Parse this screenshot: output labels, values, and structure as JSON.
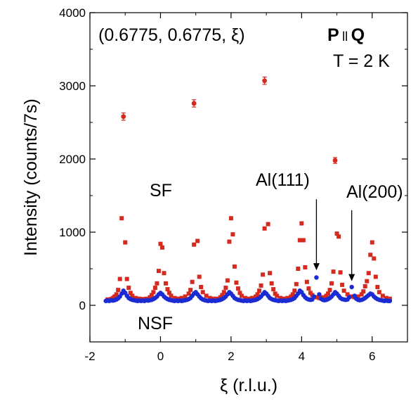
{
  "chart_data": {
    "type": "scatter",
    "xlabel": "ξ (r.l.u.)",
    "ylabel": "Intensity (counts/7s)",
    "xlim": [
      -2,
      7
    ],
    "ylim": [
      -500,
      4000
    ],
    "xticks": [
      -2,
      0,
      2,
      4,
      6
    ],
    "yticks": [
      0,
      1000,
      2000,
      3000,
      4000
    ],
    "xtick_labels": [
      "-2",
      "0",
      "2",
      "4",
      "6"
    ],
    "ytick_labels": [
      "0",
      "1000",
      "2000",
      "3000",
      "4000"
    ],
    "grid": false,
    "colors": {
      "sf": "#d42a1f",
      "nsf": "#1a2bd4"
    },
    "annotations": {
      "title_left": "(0.6775, 0.6775, ξ)",
      "p_label": "P",
      "parallel_label": "ll",
      "q_label": "Q",
      "temperature": "T = 2 K",
      "sf_label": "SF",
      "nsf_label": "NSF",
      "al111": "Al(111)",
      "al200": "Al(200)"
    },
    "al111_arrow": {
      "x": 4.42,
      "y_start": 1450,
      "y_end": 480
    },
    "al200_arrow": {
      "x": 5.42,
      "y_start": 1300,
      "y_end": 330
    },
    "series": [
      {
        "name": "SF",
        "color": "#d42a1f",
        "error_points": [
          {
            "x": -1.05,
            "y": 2580,
            "err": 50
          },
          {
            "x": 0.95,
            "y": 2760,
            "err": 50
          },
          {
            "x": 2.95,
            "y": 3070,
            "err": 50
          },
          {
            "x": 4.95,
            "y": 1980,
            "err": 40
          }
        ],
        "points": [
          [
            -1.5,
            80
          ],
          [
            -1.4,
            85
          ],
          [
            -1.35,
            100
          ],
          [
            -1.3,
            120
          ],
          [
            -1.25,
            150
          ],
          [
            -1.2,
            210
          ],
          [
            -1.15,
            360
          ],
          [
            -1.1,
            1190
          ],
          [
            -1.0,
            860
          ],
          [
            -0.95,
            360
          ],
          [
            -0.9,
            240
          ],
          [
            -0.85,
            170
          ],
          [
            -0.8,
            130
          ],
          [
            -0.7,
            100
          ],
          [
            -0.6,
            90
          ],
          [
            -0.5,
            85
          ],
          [
            -0.4,
            90
          ],
          [
            -0.3,
            110
          ],
          [
            -0.25,
            140
          ],
          [
            -0.2,
            180
          ],
          [
            -0.15,
            240
          ],
          [
            -0.1,
            300
          ],
          [
            -0.05,
            470
          ],
          [
            0.0,
            840
          ],
          [
            0.05,
            790
          ],
          [
            0.1,
            440
          ],
          [
            0.15,
            300
          ],
          [
            0.2,
            220
          ],
          [
            0.25,
            170
          ],
          [
            0.3,
            130
          ],
          [
            0.4,
            100
          ],
          [
            0.5,
            90
          ],
          [
            0.6,
            100
          ],
          [
            0.7,
            120
          ],
          [
            0.8,
            160
          ],
          [
            0.85,
            210
          ],
          [
            0.9,
            320
          ],
          [
            0.95,
            830
          ],
          [
            1.05,
            880
          ],
          [
            1.1,
            390
          ],
          [
            1.15,
            250
          ],
          [
            1.2,
            180
          ],
          [
            1.3,
            130
          ],
          [
            1.4,
            100
          ],
          [
            1.5,
            90
          ],
          [
            1.6,
            90
          ],
          [
            1.7,
            110
          ],
          [
            1.75,
            140
          ],
          [
            1.8,
            180
          ],
          [
            1.85,
            240
          ],
          [
            1.9,
            340
          ],
          [
            1.95,
            870
          ],
          [
            2.0,
            1190
          ],
          [
            2.05,
            970
          ],
          [
            2.1,
            530
          ],
          [
            2.15,
            310
          ],
          [
            2.2,
            230
          ],
          [
            2.25,
            170
          ],
          [
            2.3,
            130
          ],
          [
            2.4,
            100
          ],
          [
            2.5,
            90
          ],
          [
            2.6,
            100
          ],
          [
            2.7,
            120
          ],
          [
            2.75,
            150
          ],
          [
            2.8,
            200
          ],
          [
            2.85,
            270
          ],
          [
            2.9,
            420
          ],
          [
            2.95,
            1050
          ],
          [
            3.05,
            1110
          ],
          [
            3.1,
            440
          ],
          [
            3.15,
            300
          ],
          [
            3.2,
            220
          ],
          [
            3.25,
            160
          ],
          [
            3.3,
            130
          ],
          [
            3.4,
            100
          ],
          [
            3.5,
            90
          ],
          [
            3.6,
            100
          ],
          [
            3.7,
            120
          ],
          [
            3.75,
            150
          ],
          [
            3.8,
            200
          ],
          [
            3.85,
            290
          ],
          [
            3.9,
            500
          ],
          [
            3.95,
            890
          ],
          [
            4.0,
            1120
          ],
          [
            4.05,
            890
          ],
          [
            4.1,
            520
          ],
          [
            4.15,
            320
          ],
          [
            4.2,
            230
          ],
          [
            4.25,
            170
          ],
          [
            4.3,
            140
          ],
          [
            4.4,
            110
          ],
          [
            4.5,
            100
          ],
          [
            4.6,
            110
          ],
          [
            4.7,
            130
          ],
          [
            4.75,
            160
          ],
          [
            4.8,
            210
          ],
          [
            4.85,
            300
          ],
          [
            4.9,
            460
          ],
          [
            5.0,
            980
          ],
          [
            5.05,
            940
          ],
          [
            5.1,
            450
          ],
          [
            5.15,
            280
          ],
          [
            5.2,
            200
          ],
          [
            5.3,
            150
          ],
          [
            5.4,
            120
          ],
          [
            5.5,
            110
          ],
          [
            5.6,
            120
          ],
          [
            5.7,
            150
          ],
          [
            5.75,
            190
          ],
          [
            5.8,
            260
          ],
          [
            5.85,
            330
          ],
          [
            5.9,
            440
          ],
          [
            5.95,
            690
          ],
          [
            6.0,
            860
          ],
          [
            6.05,
            640
          ],
          [
            6.1,
            390
          ],
          [
            6.15,
            250
          ],
          [
            6.2,
            180
          ],
          [
            6.3,
            130
          ],
          [
            6.4,
            100
          ],
          [
            6.5,
            90
          ]
        ]
      },
      {
        "name": "NSF",
        "color": "#1a2bd4",
        "points": [
          [
            -1.55,
            60
          ],
          [
            -1.5,
            65
          ],
          [
            -1.45,
            60
          ],
          [
            -1.4,
            70
          ],
          [
            -1.35,
            65
          ],
          [
            -1.3,
            70
          ],
          [
            -1.25,
            80
          ],
          [
            -1.2,
            95
          ],
          [
            -1.15,
            120
          ],
          [
            -1.1,
            160
          ],
          [
            -1.05,
            200
          ],
          [
            -1.0,
            170
          ],
          [
            -0.95,
            130
          ],
          [
            -0.9,
            100
          ],
          [
            -0.85,
            85
          ],
          [
            -0.8,
            75
          ],
          [
            -0.75,
            70
          ],
          [
            -0.7,
            65
          ],
          [
            -0.65,
            60
          ],
          [
            -0.6,
            65
          ],
          [
            -0.55,
            60
          ],
          [
            -0.5,
            65
          ],
          [
            -0.45,
            60
          ],
          [
            -0.4,
            70
          ],
          [
            -0.35,
            65
          ],
          [
            -0.3,
            70
          ],
          [
            -0.25,
            75
          ],
          [
            -0.2,
            85
          ],
          [
            -0.15,
            100
          ],
          [
            -0.1,
            120
          ],
          [
            -0.05,
            150
          ],
          [
            0.0,
            170
          ],
          [
            0.05,
            150
          ],
          [
            0.1,
            120
          ],
          [
            0.15,
            100
          ],
          [
            0.2,
            85
          ],
          [
            0.25,
            75
          ],
          [
            0.3,
            70
          ],
          [
            0.35,
            65
          ],
          [
            0.4,
            60
          ],
          [
            0.45,
            65
          ],
          [
            0.5,
            60
          ],
          [
            0.55,
            65
          ],
          [
            0.6,
            60
          ],
          [
            0.65,
            65
          ],
          [
            0.7,
            70
          ],
          [
            0.75,
            75
          ],
          [
            0.8,
            85
          ],
          [
            0.85,
            100
          ],
          [
            0.9,
            130
          ],
          [
            0.95,
            160
          ],
          [
            1.0,
            180
          ],
          [
            1.05,
            150
          ],
          [
            1.1,
            120
          ],
          [
            1.15,
            95
          ],
          [
            1.2,
            80
          ],
          [
            1.25,
            70
          ],
          [
            1.3,
            65
          ],
          [
            1.35,
            60
          ],
          [
            1.4,
            65
          ],
          [
            1.45,
            60
          ],
          [
            1.5,
            65
          ],
          [
            1.55,
            60
          ],
          [
            1.6,
            65
          ],
          [
            1.65,
            70
          ],
          [
            1.7,
            75
          ],
          [
            1.75,
            85
          ],
          [
            1.8,
            100
          ],
          [
            1.85,
            120
          ],
          [
            1.9,
            150
          ],
          [
            1.95,
            180
          ],
          [
            2.0,
            160
          ],
          [
            2.05,
            130
          ],
          [
            2.1,
            100
          ],
          [
            2.15,
            85
          ],
          [
            2.2,
            75
          ],
          [
            2.25,
            70
          ],
          [
            2.3,
            65
          ],
          [
            2.35,
            60
          ],
          [
            2.4,
            65
          ],
          [
            2.45,
            60
          ],
          [
            2.5,
            65
          ],
          [
            2.55,
            60
          ],
          [
            2.6,
            65
          ],
          [
            2.65,
            70
          ],
          [
            2.7,
            75
          ],
          [
            2.75,
            85
          ],
          [
            2.8,
            100
          ],
          [
            2.85,
            120
          ],
          [
            2.9,
            150
          ],
          [
            2.95,
            180
          ],
          [
            3.0,
            160
          ],
          [
            3.05,
            130
          ],
          [
            3.1,
            100
          ],
          [
            3.15,
            85
          ],
          [
            3.2,
            75
          ],
          [
            3.25,
            70
          ],
          [
            3.3,
            65
          ],
          [
            3.35,
            60
          ],
          [
            3.4,
            65
          ],
          [
            3.45,
            60
          ],
          [
            3.5,
            65
          ],
          [
            3.55,
            60
          ],
          [
            3.6,
            65
          ],
          [
            3.65,
            70
          ],
          [
            3.7,
            75
          ],
          [
            3.75,
            85
          ],
          [
            3.8,
            100
          ],
          [
            3.85,
            130
          ],
          [
            3.9,
            160
          ],
          [
            3.95,
            200
          ],
          [
            4.0,
            180
          ],
          [
            4.05,
            140
          ],
          [
            4.1,
            110
          ],
          [
            4.15,
            90
          ],
          [
            4.2,
            80
          ],
          [
            4.25,
            75
          ],
          [
            4.3,
            80
          ],
          [
            4.35,
            120
          ],
          [
            4.42,
            380
          ],
          [
            4.5,
            150
          ],
          [
            4.55,
            90
          ],
          [
            4.6,
            75
          ],
          [
            4.65,
            70
          ],
          [
            4.7,
            75
          ],
          [
            4.75,
            85
          ],
          [
            4.8,
            100
          ],
          [
            4.85,
            120
          ],
          [
            4.9,
            150
          ],
          [
            4.95,
            180
          ],
          [
            5.0,
            160
          ],
          [
            5.05,
            130
          ],
          [
            5.1,
            100
          ],
          [
            5.15,
            85
          ],
          [
            5.2,
            80
          ],
          [
            5.25,
            75
          ],
          [
            5.3,
            80
          ],
          [
            5.35,
            110
          ],
          [
            5.42,
            250
          ],
          [
            5.5,
            130
          ],
          [
            5.55,
            90
          ],
          [
            5.6,
            75
          ],
          [
            5.65,
            70
          ],
          [
            5.7,
            75
          ],
          [
            5.75,
            85
          ],
          [
            5.8,
            100
          ],
          [
            5.85,
            120
          ],
          [
            5.9,
            140
          ],
          [
            5.95,
            160
          ],
          [
            6.0,
            150
          ],
          [
            6.05,
            120
          ],
          [
            6.1,
            100
          ],
          [
            6.15,
            85
          ],
          [
            6.2,
            75
          ],
          [
            6.25,
            70
          ],
          [
            6.3,
            65
          ],
          [
            6.35,
            60
          ],
          [
            6.4,
            65
          ],
          [
            6.45,
            60
          ],
          [
            6.5,
            60
          ]
        ]
      }
    ]
  }
}
